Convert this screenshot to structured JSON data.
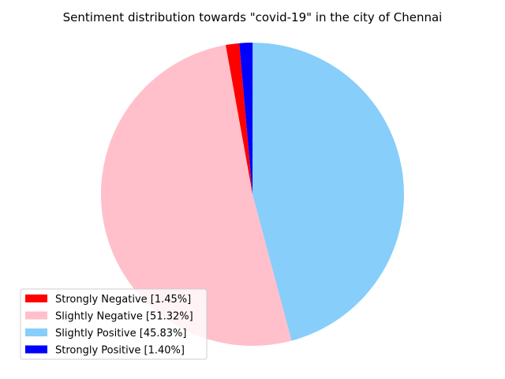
{
  "chart_data": {
    "type": "pie",
    "title": "Sentiment distribution towards \"covid-19\" in the city of Chennai",
    "start_angle_deg": 95,
    "direction": "counterclockwise",
    "legend_position": "lower-left",
    "slices": [
      {
        "label": "Strongly Negative [1.45%]",
        "value": 1.45,
        "color": "#ff0000"
      },
      {
        "label": "Slightly Negative [51.32%]",
        "value": 51.32,
        "color": "#ffc0cb"
      },
      {
        "label": "Slightly Positive [45.83%]",
        "value": 45.83,
        "color": "#87cefa"
      },
      {
        "label": "Strongly Positive [1.40%]",
        "value": 1.4,
        "color": "#0000ff"
      }
    ]
  }
}
